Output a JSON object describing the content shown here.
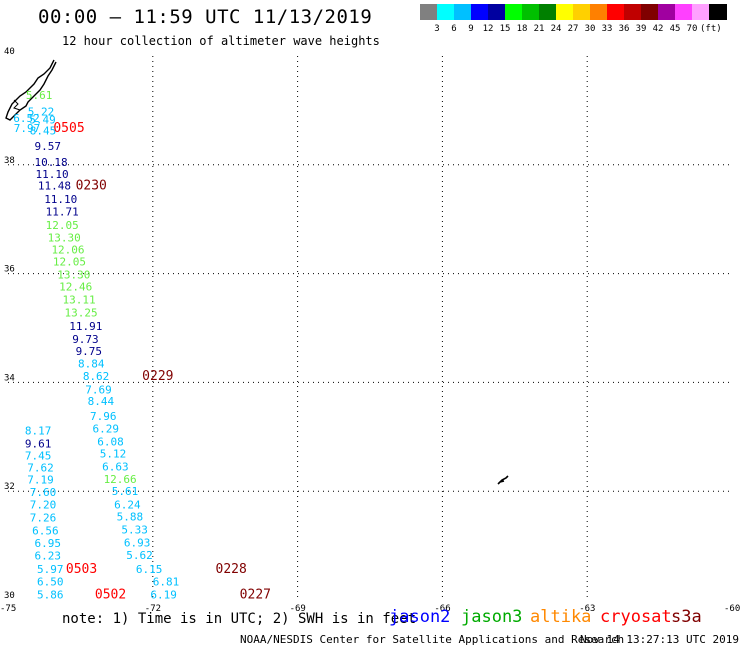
{
  "header": {
    "title": "00:00 – 11:59 UTC 11/13/2019",
    "subtitle": "12 hour collection of altimeter wave heights"
  },
  "color_scale": {
    "swatches": [
      "#808080",
      "#00ffff",
      "#00c0ff",
      "#0000ff",
      "#0000a0",
      "#00ff00",
      "#00c000",
      "#008000",
      "#ffff00",
      "#ffd000",
      "#ff8000",
      "#ff0000",
      "#c00000",
      "#800000",
      "#a000a0",
      "#ff40ff",
      "#ffa0ff",
      "#000000"
    ],
    "labels": [
      "3",
      "6",
      "9",
      "12",
      "15",
      "18",
      "21",
      "24",
      "27",
      "30",
      "33",
      "36",
      "39",
      "42",
      "45",
      "70",
      "(ft)"
    ]
  },
  "axes": {
    "lat_labels": [
      "40",
      "38",
      "36",
      "34",
      "32",
      "30"
    ],
    "lat_values": [
      40,
      38,
      36,
      34,
      32,
      30
    ],
    "lon_labels": [
      "-75",
      "-72",
      "-69",
      "-66",
      "-63",
      "-60"
    ],
    "lon_values": [
      -75,
      -72,
      -69,
      -66,
      -63,
      -60
    ],
    "lon_range": [
      -75,
      -60
    ],
    "lat_range": [
      30,
      40
    ]
  },
  "colors": {
    "cyan": "#00c0ff",
    "navy": "#00008b",
    "lightgreen": "#66ee44",
    "green": "#00aa00",
    "red": "#ff0000",
    "darkred": "#800000",
    "orange": "#ff8800"
  },
  "points": [
    {
      "t": "5.61",
      "lon": -74.63,
      "lat": 39.21,
      "c": "lightgreen"
    },
    {
      "t": "5.22",
      "lon": -74.59,
      "lat": 38.91,
      "c": "cyan"
    },
    {
      "t": "6.52",
      "lon": -74.89,
      "lat": 38.79,
      "c": "cyan"
    },
    {
      "t": "5.49",
      "lon": -74.56,
      "lat": 38.76,
      "c": "cyan"
    },
    {
      "t": "7.97",
      "lon": -74.88,
      "lat": 38.6,
      "c": "cyan"
    },
    {
      "t": "8.45",
      "lon": -74.55,
      "lat": 38.56,
      "c": "cyan"
    },
    {
      "t": "0505",
      "lon": -74.06,
      "lat": 38.6,
      "c": "red",
      "big": true
    },
    {
      "t": "9.57",
      "lon": -74.45,
      "lat": 38.27,
      "c": "navy"
    },
    {
      "t": "10.18",
      "lon": -74.45,
      "lat": 37.98,
      "c": "navy"
    },
    {
      "t": "11.10",
      "lon": -74.43,
      "lat": 37.76,
      "c": "navy"
    },
    {
      "t": "11.48",
      "lon": -74.38,
      "lat": 37.55,
      "c": "navy"
    },
    {
      "t": "0230",
      "lon": -73.6,
      "lat": 37.55,
      "c": "darkred",
      "big": true
    },
    {
      "t": "11.10",
      "lon": -74.25,
      "lat": 37.3,
      "c": "navy"
    },
    {
      "t": "11.71",
      "lon": -74.22,
      "lat": 37.07,
      "c": "navy"
    },
    {
      "t": "12.05",
      "lon": -74.22,
      "lat": 36.82,
      "c": "lightgreen"
    },
    {
      "t": "13.30",
      "lon": -74.18,
      "lat": 36.59,
      "c": "lightgreen"
    },
    {
      "t": "12.06",
      "lon": -74.1,
      "lat": 36.37,
      "c": "lightgreen"
    },
    {
      "t": "12.05",
      "lon": -74.07,
      "lat": 36.15,
      "c": "lightgreen"
    },
    {
      "t": "13.30",
      "lon": -73.98,
      "lat": 35.91,
      "c": "lightgreen"
    },
    {
      "t": "12.46",
      "lon": -73.94,
      "lat": 35.69,
      "c": "lightgreen"
    },
    {
      "t": "13.11",
      "lon": -73.87,
      "lat": 35.45,
      "c": "lightgreen"
    },
    {
      "t": "13.25",
      "lon": -73.83,
      "lat": 35.21,
      "c": "lightgreen"
    },
    {
      "t": "11.91",
      "lon": -73.73,
      "lat": 34.96,
      "c": "navy"
    },
    {
      "t": "9.73",
      "lon": -73.67,
      "lat": 34.72,
      "c": "navy"
    },
    {
      "t": "9.75",
      "lon": -73.6,
      "lat": 34.5,
      "c": "navy"
    },
    {
      "t": "8.84",
      "lon": -73.55,
      "lat": 34.27,
      "c": "cyan"
    },
    {
      "t": "8.62",
      "lon": -73.45,
      "lat": 34.04,
      "c": "cyan"
    },
    {
      "t": "0229",
      "lon": -72.22,
      "lat": 34.04,
      "c": "darkred",
      "big": true
    },
    {
      "t": "7.69",
      "lon": -73.4,
      "lat": 33.8,
      "c": "cyan"
    },
    {
      "t": "8.44",
      "lon": -73.35,
      "lat": 33.58,
      "c": "cyan"
    },
    {
      "t": "7.96",
      "lon": -73.3,
      "lat": 33.31,
      "c": "cyan"
    },
    {
      "t": "6.29",
      "lon": -73.25,
      "lat": 33.08,
      "c": "cyan"
    },
    {
      "t": "8.17",
      "lon": -74.65,
      "lat": 33.04,
      "c": "cyan"
    },
    {
      "t": "6.08",
      "lon": -73.15,
      "lat": 32.84,
      "c": "cyan"
    },
    {
      "t": "9.61",
      "lon": -74.65,
      "lat": 32.8,
      "c": "navy"
    },
    {
      "t": "5.12",
      "lon": -73.1,
      "lat": 32.62,
      "c": "cyan"
    },
    {
      "t": "7.45",
      "lon": -74.65,
      "lat": 32.58,
      "c": "cyan"
    },
    {
      "t": "6.63",
      "lon": -73.05,
      "lat": 32.38,
      "c": "cyan"
    },
    {
      "t": "7.62",
      "lon": -74.6,
      "lat": 32.36,
      "c": "cyan"
    },
    {
      "t": "12.66",
      "lon": -73.02,
      "lat": 32.15,
      "c": "lightgreen"
    },
    {
      "t": "7.19",
      "lon": -74.6,
      "lat": 32.14,
      "c": "cyan"
    },
    {
      "t": "5.61",
      "lon": -72.85,
      "lat": 31.93,
      "c": "cyan"
    },
    {
      "t": "7.60",
      "lon": -74.55,
      "lat": 31.91,
      "c": "cyan"
    },
    {
      "t": "6.24",
      "lon": -72.8,
      "lat": 31.68,
      "c": "cyan"
    },
    {
      "t": "7.20",
      "lon": -74.55,
      "lat": 31.68,
      "c": "cyan"
    },
    {
      "t": "5.88",
      "lon": -72.75,
      "lat": 31.46,
      "c": "cyan"
    },
    {
      "t": "7.26",
      "lon": -74.55,
      "lat": 31.44,
      "c": "cyan"
    },
    {
      "t": "5.33",
      "lon": -72.65,
      "lat": 31.22,
      "c": "cyan"
    },
    {
      "t": "6.56",
      "lon": -74.5,
      "lat": 31.2,
      "c": "cyan"
    },
    {
      "t": "6.93",
      "lon": -72.6,
      "lat": 30.98,
      "c": "cyan"
    },
    {
      "t": "6.95",
      "lon": -74.45,
      "lat": 30.97,
      "c": "cyan"
    },
    {
      "t": "5.62",
      "lon": -72.55,
      "lat": 30.75,
      "c": "cyan"
    },
    {
      "t": "6.23",
      "lon": -74.45,
      "lat": 30.74,
      "c": "cyan"
    },
    {
      "t": "5.97",
      "lon": -74.4,
      "lat": 30.5,
      "c": "cyan"
    },
    {
      "t": "0503",
      "lon": -73.8,
      "lat": 30.5,
      "c": "red",
      "big": true
    },
    {
      "t": "6.15",
      "lon": -72.35,
      "lat": 30.5,
      "c": "cyan"
    },
    {
      "t": "0228",
      "lon": -70.7,
      "lat": 30.5,
      "c": "darkred",
      "big": true
    },
    {
      "t": "6.50",
      "lon": -74.4,
      "lat": 30.27,
      "c": "cyan"
    },
    {
      "t": "6.81",
      "lon": -72.0,
      "lat": 30.27,
      "c": "cyan"
    },
    {
      "t": "5.86",
      "lon": -74.4,
      "lat": 30.03,
      "c": "cyan"
    },
    {
      "t": "0502",
      "lon": -73.2,
      "lat": 30.03,
      "c": "red",
      "big": true
    },
    {
      "t": "6.19",
      "lon": -72.05,
      "lat": 30.03,
      "c": "cyan"
    },
    {
      "t": "0227",
      "lon": -70.2,
      "lat": 30.03,
      "c": "darkred",
      "big": true
    }
  ],
  "footer": {
    "note": "note: 1) Time is in UTC; 2) SWH is in feet",
    "satellites": [
      {
        "name": "jason2",
        "color": "#0000ff"
      },
      {
        "name": "jason3",
        "color": "#00aa00"
      },
      {
        "name": "altika",
        "color": "#ff8800"
      },
      {
        "name": "cryosat",
        "color": "#ff0000"
      },
      {
        "name": "s3a",
        "color": "#800000"
      }
    ],
    "credit": "NOAA/NESDIS Center for Satellite Applications and Research",
    "timestamp": "Nov 14 13:27:13 UTC 2019"
  }
}
